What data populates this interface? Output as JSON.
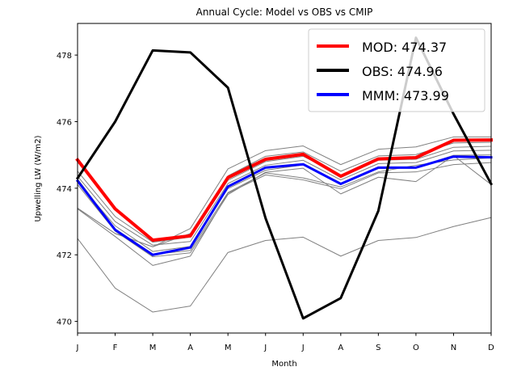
{
  "chart_data": {
    "type": "line",
    "title": "Annual Cycle: Model vs OBS vs CMIP",
    "xlabel": "Month",
    "ylabel": "Upwelling LW (W/m2)",
    "categories": [
      "J",
      "F",
      "M",
      "A",
      "M",
      "J",
      "J",
      "A",
      "S",
      "O",
      "N",
      "D"
    ],
    "ylim": [
      469.65,
      478.95
    ],
    "yticks": [
      470,
      472,
      474,
      476,
      478
    ],
    "grid": false,
    "legend_position": "top-right",
    "series": [
      {
        "name": "MOD: 474.37",
        "color": "#ff0000",
        "width": 4,
        "values": [
          474.85,
          473.38,
          472.44,
          472.57,
          474.32,
          474.87,
          475.02,
          474.36,
          474.88,
          474.92,
          475.44,
          475.45
        ]
      },
      {
        "name": "OBS: 474.96",
        "color": "#000000",
        "width": 3,
        "values": [
          474.3,
          476.0,
          478.14,
          478.08,
          477.02,
          473.1,
          470.09,
          470.7,
          473.32,
          478.52,
          476.23,
          474.13
        ]
      },
      {
        "name": "MMM: 473.99",
        "color": "#0000ff",
        "width": 3,
        "values": [
          474.22,
          472.75,
          472.0,
          472.22,
          474.05,
          474.62,
          474.72,
          474.13,
          474.62,
          474.62,
          474.95,
          474.93
        ]
      }
    ],
    "background_series": {
      "color": "#808080",
      "width": 1,
      "lines": [
        [
          473.4,
          472.64,
          472.24,
          472.79,
          474.58,
          475.13,
          475.27,
          474.71,
          475.17,
          475.24,
          475.54,
          475.54
        ],
        [
          473.4,
          472.64,
          472.24,
          472.64,
          474.37,
          474.96,
          475.09,
          474.51,
          474.97,
          475.01,
          475.36,
          475.38
        ],
        [
          474.51,
          473.15,
          472.38,
          472.53,
          474.24,
          474.8,
          474.96,
          474.39,
          474.84,
          474.87,
          475.23,
          475.26
        ],
        [
          474.36,
          473.0,
          472.29,
          472.4,
          474.14,
          474.69,
          474.84,
          474.25,
          474.74,
          474.77,
          475.12,
          475.14
        ],
        [
          474.19,
          472.87,
          472.1,
          472.25,
          473.99,
          474.54,
          474.7,
          474.11,
          474.59,
          474.62,
          474.99,
          475.0
        ],
        [
          474.28,
          472.78,
          472.01,
          472.13,
          473.87,
          474.46,
          474.31,
          474.04,
          474.49,
          474.69,
          474.85,
          474.91
        ],
        [
          474.11,
          472.71,
          471.94,
          472.06,
          473.81,
          474.48,
          474.6,
          473.83,
          474.33,
          474.2,
          474.98,
          474.11
        ],
        [
          473.38,
          472.55,
          471.68,
          471.96,
          473.85,
          474.4,
          474.25,
          473.98,
          474.46,
          474.49,
          474.71,
          474.77
        ],
        [
          472.49,
          471.0,
          470.28,
          470.46,
          472.07,
          472.43,
          472.53,
          471.96,
          472.43,
          472.52,
          472.85,
          473.12
        ]
      ]
    },
    "legend": [
      {
        "label": "MOD: 474.37",
        "color": "#ff0000"
      },
      {
        "label": "OBS: 474.96",
        "color": "#000000"
      },
      {
        "label": "MMM: 473.99",
        "color": "#0000ff"
      }
    ]
  }
}
